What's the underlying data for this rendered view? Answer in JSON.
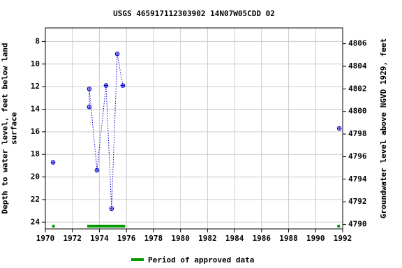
{
  "chart_data": {
    "type": "line",
    "title": "USGS 465917112303902 14N07W05CDD 02",
    "xlabel": "",
    "ylabel": "Depth to water level, feet below land\nsurface",
    "y2label": "Groundwater level above NGVD 1929, feet",
    "x": [
      1970.57,
      null,
      1973.25,
      1973.25,
      1973.82,
      1974.49,
      1974.9,
      1975.32,
      1975.73,
      null,
      1991.75
    ],
    "series": [
      {
        "name": "Depth to water level",
        "color": "#0000cc",
        "values": [
          18.7,
          null,
          13.8,
          12.2,
          19.4,
          11.9,
          22.8,
          9.1,
          11.9,
          null,
          15.7
        ]
      }
    ],
    "xlim": [
      1970,
      1992
    ],
    "xticks": [
      1970,
      1972,
      1974,
      1976,
      1978,
      1980,
      1982,
      1984,
      1986,
      1988,
      1990,
      1992
    ],
    "ylim": [
      6.8,
      24.6
    ],
    "yticks": [
      8,
      10,
      12,
      14,
      16,
      18,
      20,
      22,
      24
    ],
    "y2lim": [
      4807.4,
      4789.6
    ],
    "y2ticks": [
      4790,
      4792,
      4794,
      4796,
      4798,
      4800,
      4802,
      4804,
      4806
    ],
    "y_inverted": true,
    "grid": true,
    "approved_periods": {
      "name": "Period of approved data",
      "color": "#009900",
      "ranges": [
        [
          1970.5,
          1970.7
        ],
        [
          1973.1,
          1975.9
        ],
        [
          1991.6,
          1991.8
        ]
      ]
    }
  }
}
